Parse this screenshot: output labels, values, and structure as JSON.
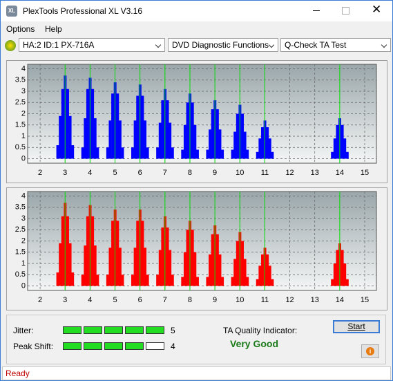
{
  "window": {
    "title": "PlexTools Professional XL V3.16"
  },
  "menu": [
    "Options",
    "Help"
  ],
  "toolbar": {
    "drive": "HA:2 ID:1  PX-716A",
    "function": "DVD Diagnostic Functions",
    "test": "Q-Check TA Test"
  },
  "chart_data": [
    {
      "type": "bar",
      "color": "#0000ff",
      "marker_color": "#00e000",
      "x": [
        2.7,
        2.8,
        2.9,
        3,
        3.1,
        3.2,
        3.3,
        3.7,
        3.8,
        3.9,
        4,
        4.1,
        4.2,
        4.3,
        4.7,
        4.8,
        4.9,
        5,
        5.1,
        5.2,
        5.3,
        5.7,
        5.8,
        5.9,
        6,
        6.1,
        6.2,
        6.3,
        6.7,
        6.8,
        6.9,
        7,
        7.1,
        7.2,
        7.3,
        7.7,
        7.8,
        7.9,
        8,
        8.1,
        8.2,
        8.3,
        8.7,
        8.8,
        8.9,
        9,
        9.1,
        9.2,
        9.3,
        9.7,
        9.8,
        9.9,
        10,
        10.1,
        10.2,
        10.3,
        10.7,
        10.8,
        10.9,
        11,
        11.1,
        11.2,
        11.3,
        13.7,
        13.8,
        13.9,
        14,
        14.1,
        14.2,
        14.3
      ],
      "values": [
        0.6,
        1.9,
        3.1,
        3.7,
        3.1,
        1.9,
        0.6,
        0.5,
        1.8,
        3.1,
        3.6,
        3.1,
        1.8,
        0.5,
        0.5,
        1.7,
        2.9,
        3.4,
        2.9,
        1.7,
        0.5,
        0.5,
        1.7,
        2.8,
        3.3,
        2.8,
        1.7,
        0.5,
        0.5,
        1.6,
        2.6,
        3.1,
        2.6,
        1.6,
        0.5,
        0.4,
        1.5,
        2.5,
        2.9,
        2.5,
        1.5,
        0.4,
        0.4,
        1.3,
        2.2,
        2.6,
        2.2,
        1.3,
        0.4,
        0.4,
        1.2,
        2,
        2.4,
        2,
        1.2,
        0.4,
        0.3,
        0.9,
        1.4,
        1.7,
        1.4,
        0.9,
        0.3,
        0.3,
        0.9,
        1.5,
        1.8,
        1.5,
        0.9,
        0.3
      ],
      "marker_lines": [
        3,
        4,
        5,
        6,
        7,
        8,
        9,
        10,
        11,
        14
      ],
      "xlim": [
        1.5,
        15.47
      ],
      "ylim": [
        -0.2,
        4.2
      ],
      "xticks": [
        2,
        3,
        4,
        5,
        6,
        7,
        8,
        9,
        10,
        11,
        12,
        13,
        14,
        15
      ],
      "yticks": [
        0,
        0.5,
        1,
        1.5,
        2,
        2.5,
        3,
        3.5,
        4
      ],
      "grid": true
    },
    {
      "type": "bar",
      "color": "#ff0000",
      "marker_color": "#00e000",
      "x": [
        2.7,
        2.8,
        2.9,
        3,
        3.1,
        3.2,
        3.3,
        3.7,
        3.8,
        3.9,
        4,
        4.1,
        4.2,
        4.3,
        4.7,
        4.8,
        4.9,
        5,
        5.1,
        5.2,
        5.3,
        5.7,
        5.8,
        5.9,
        6,
        6.1,
        6.2,
        6.3,
        6.7,
        6.8,
        6.9,
        7,
        7.1,
        7.2,
        7.3,
        7.7,
        7.8,
        7.9,
        8,
        8.1,
        8.2,
        8.3,
        8.7,
        8.8,
        8.9,
        9,
        9.1,
        9.2,
        9.3,
        9.7,
        9.8,
        9.9,
        10,
        10.1,
        10.2,
        10.3,
        10.7,
        10.8,
        10.9,
        11,
        11.1,
        11.2,
        11.3,
        13.7,
        13.8,
        13.9,
        14,
        14.1,
        14.2,
        14.3
      ],
      "values": [
        0.6,
        1.9,
        3.1,
        3.7,
        3.1,
        1.9,
        0.6,
        0.5,
        1.8,
        3.1,
        3.6,
        3.1,
        1.8,
        0.5,
        0.5,
        1.7,
        2.9,
        3.4,
        2.9,
        1.7,
        0.5,
        0.5,
        1.7,
        2.9,
        3.4,
        2.9,
        1.7,
        0.5,
        0.5,
        1.6,
        2.6,
        3.1,
        2.6,
        1.6,
        0.5,
        0.4,
        1.5,
        2.5,
        2.9,
        2.5,
        1.5,
        0.4,
        0.4,
        1.4,
        2.3,
        2.7,
        2.3,
        1.4,
        0.4,
        0.4,
        1.2,
        2,
        2.4,
        2,
        1.2,
        0.4,
        0.3,
        0.9,
        1.4,
        1.7,
        1.4,
        0.9,
        0.3,
        0.3,
        1,
        1.6,
        1.9,
        1.6,
        1,
        0.3
      ],
      "marker_lines": [
        3,
        4,
        5,
        6,
        7,
        8,
        9,
        10,
        11,
        14
      ],
      "xlim": [
        1.5,
        15.47
      ],
      "ylim": [
        -0.2,
        4.2
      ],
      "xticks": [
        2,
        3,
        4,
        5,
        6,
        7,
        8,
        9,
        10,
        11,
        12,
        13,
        14,
        15
      ],
      "yticks": [
        0,
        0.5,
        1,
        1.5,
        2,
        2.5,
        3,
        3.5,
        4
      ],
      "grid": true
    }
  ],
  "results": {
    "jitter_label": "Jitter:",
    "jitter": 5,
    "peak_shift_label": "Peak Shift:",
    "peak_shift": 4,
    "meter_max": 5,
    "quality_label": "TA Quality Indicator:",
    "quality": "Very Good",
    "start": "Start"
  },
  "status": "Ready"
}
